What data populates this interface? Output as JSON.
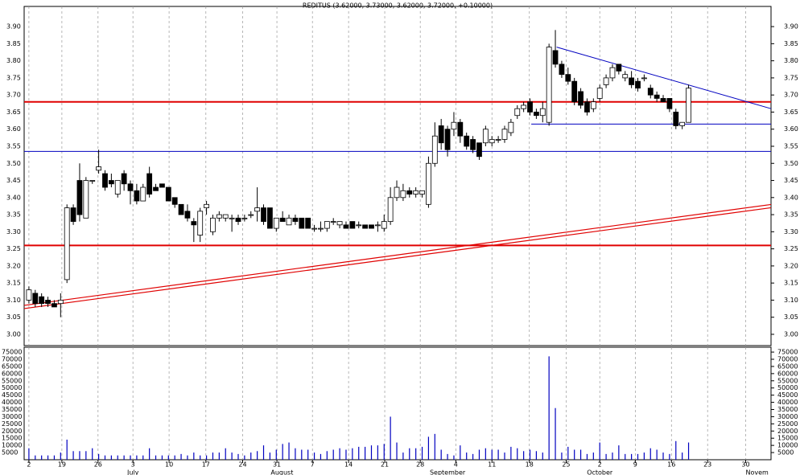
{
  "chart_data": [
    {
      "type": "candlestick",
      "title": "REDITUS (3.62000, 3.73000, 3.62000, 3.72000, +0.10000)",
      "open": [
        3.1,
        3.12,
        3.11,
        3.1,
        3.09,
        3.09,
        3.16,
        3.37,
        3.45,
        3.34,
        3.45,
        3.48,
        3.47,
        3.45,
        3.41,
        3.47,
        3.44,
        3.42,
        3.39,
        3.47,
        3.43,
        3.44,
        3.43,
        3.4,
        3.38,
        3.36,
        3.33,
        3.29,
        3.37,
        3.3,
        3.34,
        3.34,
        3.34,
        3.34,
        3.34,
        3.35,
        3.36,
        3.37,
        3.37,
        3.31,
        3.34,
        3.32,
        3.34,
        3.34,
        3.34,
        3.31,
        3.31,
        3.31,
        3.33,
        3.32,
        3.32,
        3.33,
        3.32,
        3.32,
        3.32,
        3.32,
        3.31,
        3.33,
        3.4,
        3.4,
        3.42,
        3.41,
        3.41,
        3.38,
        3.5,
        3.61,
        3.6,
        3.6,
        3.62,
        3.58,
        3.57,
        3.56,
        3.56,
        3.56,
        3.57,
        3.57,
        3.59,
        3.64,
        3.66,
        3.68,
        3.65,
        3.64,
        3.62,
        3.83,
        3.79,
        3.76,
        3.74,
        3.71,
        3.68,
        3.66,
        3.69,
        3.73,
        3.75,
        3.79,
        3.75,
        3.75,
        3.74,
        3.75,
        3.72,
        3.7,
        3.69,
        3.69,
        3.65,
        3.61,
        3.62
      ],
      "high": [
        3.14,
        3.13,
        3.12,
        3.11,
        3.1,
        3.12,
        3.38,
        3.38,
        3.5,
        3.46,
        3.45,
        3.54,
        3.48,
        3.47,
        3.45,
        3.48,
        3.45,
        3.44,
        3.44,
        3.49,
        3.44,
        3.44,
        3.43,
        3.4,
        3.38,
        3.38,
        3.34,
        3.37,
        3.39,
        3.35,
        3.36,
        3.35,
        3.35,
        3.35,
        3.35,
        3.36,
        3.43,
        3.38,
        3.37,
        3.34,
        3.36,
        3.35,
        3.35,
        3.34,
        3.34,
        3.32,
        3.33,
        3.33,
        3.34,
        3.33,
        3.33,
        3.33,
        3.33,
        3.32,
        3.32,
        3.33,
        3.35,
        3.43,
        3.45,
        3.44,
        3.43,
        3.43,
        3.42,
        3.52,
        3.62,
        3.63,
        3.61,
        3.65,
        3.63,
        3.59,
        3.58,
        3.56,
        3.61,
        3.58,
        3.58,
        3.61,
        3.63,
        3.67,
        3.68,
        3.69,
        3.66,
        3.68,
        3.85,
        3.89,
        3.8,
        3.78,
        3.75,
        3.72,
        3.69,
        3.69,
        3.73,
        3.76,
        3.79,
        3.79,
        3.77,
        3.77,
        3.75,
        3.76,
        3.73,
        3.71,
        3.7,
        3.69,
        3.66,
        3.62,
        3.73
      ],
      "low": [
        3.09,
        3.08,
        3.08,
        3.08,
        3.08,
        3.05,
        3.15,
        3.32,
        3.33,
        3.34,
        3.44,
        3.47,
        3.42,
        3.43,
        3.4,
        3.42,
        3.38,
        3.38,
        3.39,
        3.4,
        3.42,
        3.43,
        3.39,
        3.37,
        3.35,
        3.33,
        3.27,
        3.27,
        3.35,
        3.29,
        3.33,
        3.33,
        3.3,
        3.32,
        3.33,
        3.34,
        3.33,
        3.32,
        3.31,
        3.3,
        3.33,
        3.32,
        3.32,
        3.31,
        3.31,
        3.3,
        3.3,
        3.3,
        3.32,
        3.31,
        3.31,
        3.31,
        3.31,
        3.31,
        3.31,
        3.3,
        3.3,
        3.32,
        3.39,
        3.39,
        3.4,
        3.4,
        3.4,
        3.37,
        3.49,
        3.54,
        3.52,
        3.58,
        3.56,
        3.54,
        3.53,
        3.51,
        3.55,
        3.55,
        3.56,
        3.56,
        3.58,
        3.63,
        3.65,
        3.64,
        3.63,
        3.62,
        3.61,
        3.78,
        3.75,
        3.73,
        3.67,
        3.66,
        3.64,
        3.65,
        3.68,
        3.72,
        3.74,
        3.76,
        3.74,
        3.72,
        3.71,
        3.74,
        3.69,
        3.68,
        3.68,
        3.65,
        3.6,
        3.6,
        3.62
      ],
      "close": [
        3.13,
        3.09,
        3.09,
        3.09,
        3.08,
        3.1,
        3.37,
        3.33,
        3.35,
        3.45,
        3.45,
        3.49,
        3.43,
        3.44,
        3.45,
        3.44,
        3.42,
        3.39,
        3.43,
        3.41,
        3.42,
        3.43,
        3.39,
        3.38,
        3.35,
        3.34,
        3.32,
        3.36,
        3.38,
        3.34,
        3.35,
        3.35,
        3.34,
        3.33,
        3.34,
        3.35,
        3.37,
        3.33,
        3.31,
        3.34,
        3.33,
        3.34,
        3.33,
        3.31,
        3.31,
        3.31,
        3.31,
        3.33,
        3.33,
        3.33,
        3.31,
        3.31,
        3.32,
        3.31,
        3.31,
        3.32,
        3.33,
        3.4,
        3.43,
        3.42,
        3.41,
        3.42,
        3.42,
        3.5,
        3.58,
        3.56,
        3.54,
        3.62,
        3.58,
        3.55,
        3.54,
        3.52,
        3.6,
        3.57,
        3.57,
        3.6,
        3.62,
        3.66,
        3.67,
        3.65,
        3.64,
        3.66,
        3.84,
        3.79,
        3.76,
        3.74,
        3.68,
        3.67,
        3.65,
        3.68,
        3.72,
        3.75,
        3.78,
        3.77,
        3.76,
        3.73,
        3.72,
        3.75,
        3.7,
        3.69,
        3.68,
        3.66,
        3.61,
        3.62,
        3.72
      ],
      "xlim": [
        -0.75,
        117
      ],
      "ylim": [
        2.967,
        3.959
      ],
      "yticks": [
        {
          "value": 3.0,
          "label": "3.00"
        },
        {
          "value": 3.05,
          "label": "3.05"
        },
        {
          "value": 3.1,
          "label": "3.10"
        },
        {
          "value": 3.15,
          "label": "3.15"
        },
        {
          "value": 3.2,
          "label": "3.20"
        },
        {
          "value": 3.25,
          "label": "3.25"
        },
        {
          "value": 3.3,
          "label": "3.30"
        },
        {
          "value": 3.35,
          "label": "3.35"
        },
        {
          "value": 3.4,
          "label": "3.40"
        },
        {
          "value": 3.45,
          "label": "3.45"
        },
        {
          "value": 3.5,
          "label": "3.50"
        },
        {
          "value": 3.55,
          "label": "3.55"
        },
        {
          "value": 3.6,
          "label": "3.60"
        },
        {
          "value": 3.65,
          "label": "3.65"
        },
        {
          "value": 3.7,
          "label": "3.70"
        },
        {
          "value": 3.75,
          "label": "3.75"
        },
        {
          "value": 3.8,
          "label": "3.80"
        },
        {
          "value": 3.85,
          "label": "3.85"
        },
        {
          "value": 3.9,
          "label": "3.90"
        }
      ],
      "hlines": [
        {
          "value": 3.68,
          "color": "#e00000"
        },
        {
          "value": 3.26,
          "color": "#e00000"
        },
        {
          "value": 3.535,
          "color": "#0000c0"
        }
      ],
      "trendlines": [
        {
          "x": [
            -0.75,
            117
          ],
          "y": [
            3.08,
            3.375
          ],
          "color": "#e00000",
          "double": true
        },
        {
          "x": [
            83.2,
            117
          ],
          "y": [
            3.84,
            3.66
          ],
          "color": "#0000c0",
          "double": false
        },
        {
          "x": [
            79.2,
            117
          ],
          "y": [
            3.615,
            3.615
          ],
          "color": "#0000c0",
          "double": false
        }
      ],
      "up_color": "#ffffff",
      "down_color": "#000000"
    },
    {
      "type": "bar",
      "values": [
        8000,
        3000,
        3000,
        3000,
        3000,
        5000,
        14000,
        6000,
        6000,
        6000,
        8000,
        4000,
        3000,
        3000,
        3000,
        3000,
        3000,
        3000,
        3000,
        8000,
        3000,
        3000,
        3000,
        3000,
        4000,
        3000,
        5000,
        3000,
        3000,
        5000,
        5000,
        8000,
        5000,
        4000,
        3000,
        5000,
        6000,
        10000,
        5000,
        7000,
        11000,
        12000,
        8000,
        7000,
        7000,
        5000,
        4000,
        6000,
        7000,
        8000,
        7000,
        8000,
        9000,
        9000,
        10000,
        10000,
        11000,
        30000,
        12000,
        5000,
        8000,
        8000,
        9000,
        16000,
        18000,
        7000,
        4000,
        3000,
        10000,
        5000,
        4000,
        7000,
        8000,
        7000,
        7000,
        5000,
        9000,
        8000,
        6000,
        7000,
        6000,
        5000,
        72000,
        36000,
        5000,
        9000,
        7000,
        7000,
        4000,
        5000,
        12000,
        4000,
        5000,
        10000,
        4000,
        4000,
        4000,
        5000,
        8000,
        7000,
        5000,
        4000,
        13000,
        5000,
        12000
      ],
      "color": "#0000c0",
      "xlim": [
        -0.75,
        117
      ],
      "ylim": [
        0,
        78400
      ],
      "yticks": [
        5000,
        10000,
        15000,
        20000,
        25000,
        30000,
        35000,
        40000,
        45000,
        50000,
        55000,
        60000,
        65000,
        70000,
        75000
      ],
      "xticks": [
        {
          "value": 0,
          "label": "2"
        },
        {
          "value": 5.2,
          "label": "19"
        },
        {
          "value": 10.9,
          "label": "26"
        },
        {
          "value": 16.4,
          "label": "3"
        },
        {
          "value": 22.1,
          "label": "10"
        },
        {
          "value": 27.9,
          "label": "17"
        },
        {
          "value": 33.7,
          "label": "24"
        },
        {
          "value": 39.1,
          "label": "31"
        },
        {
          "value": 44.7,
          "label": "7"
        },
        {
          "value": 50.4,
          "label": "14"
        },
        {
          "value": 56.1,
          "label": "21"
        },
        {
          "value": 61.7,
          "label": "28"
        },
        {
          "value": 67.3,
          "label": "4"
        },
        {
          "value": 73,
          "label": "11"
        },
        {
          "value": 78.9,
          "label": "18"
        },
        {
          "value": 84.7,
          "label": "25"
        },
        {
          "value": 90,
          "label": "2"
        },
        {
          "value": 95.6,
          "label": "9"
        },
        {
          "value": 101.3,
          "label": "16"
        },
        {
          "value": 107,
          "label": "23"
        },
        {
          "value": 113,
          "label": "30"
        }
      ],
      "months": [
        {
          "value": 16.4,
          "label": "July"
        },
        {
          "value": 39.9,
          "label": "August"
        },
        {
          "value": 66,
          "label": "September"
        },
        {
          "value": 90,
          "label": "October"
        },
        {
          "value": 114.8,
          "label": "Novem"
        }
      ]
    }
  ]
}
